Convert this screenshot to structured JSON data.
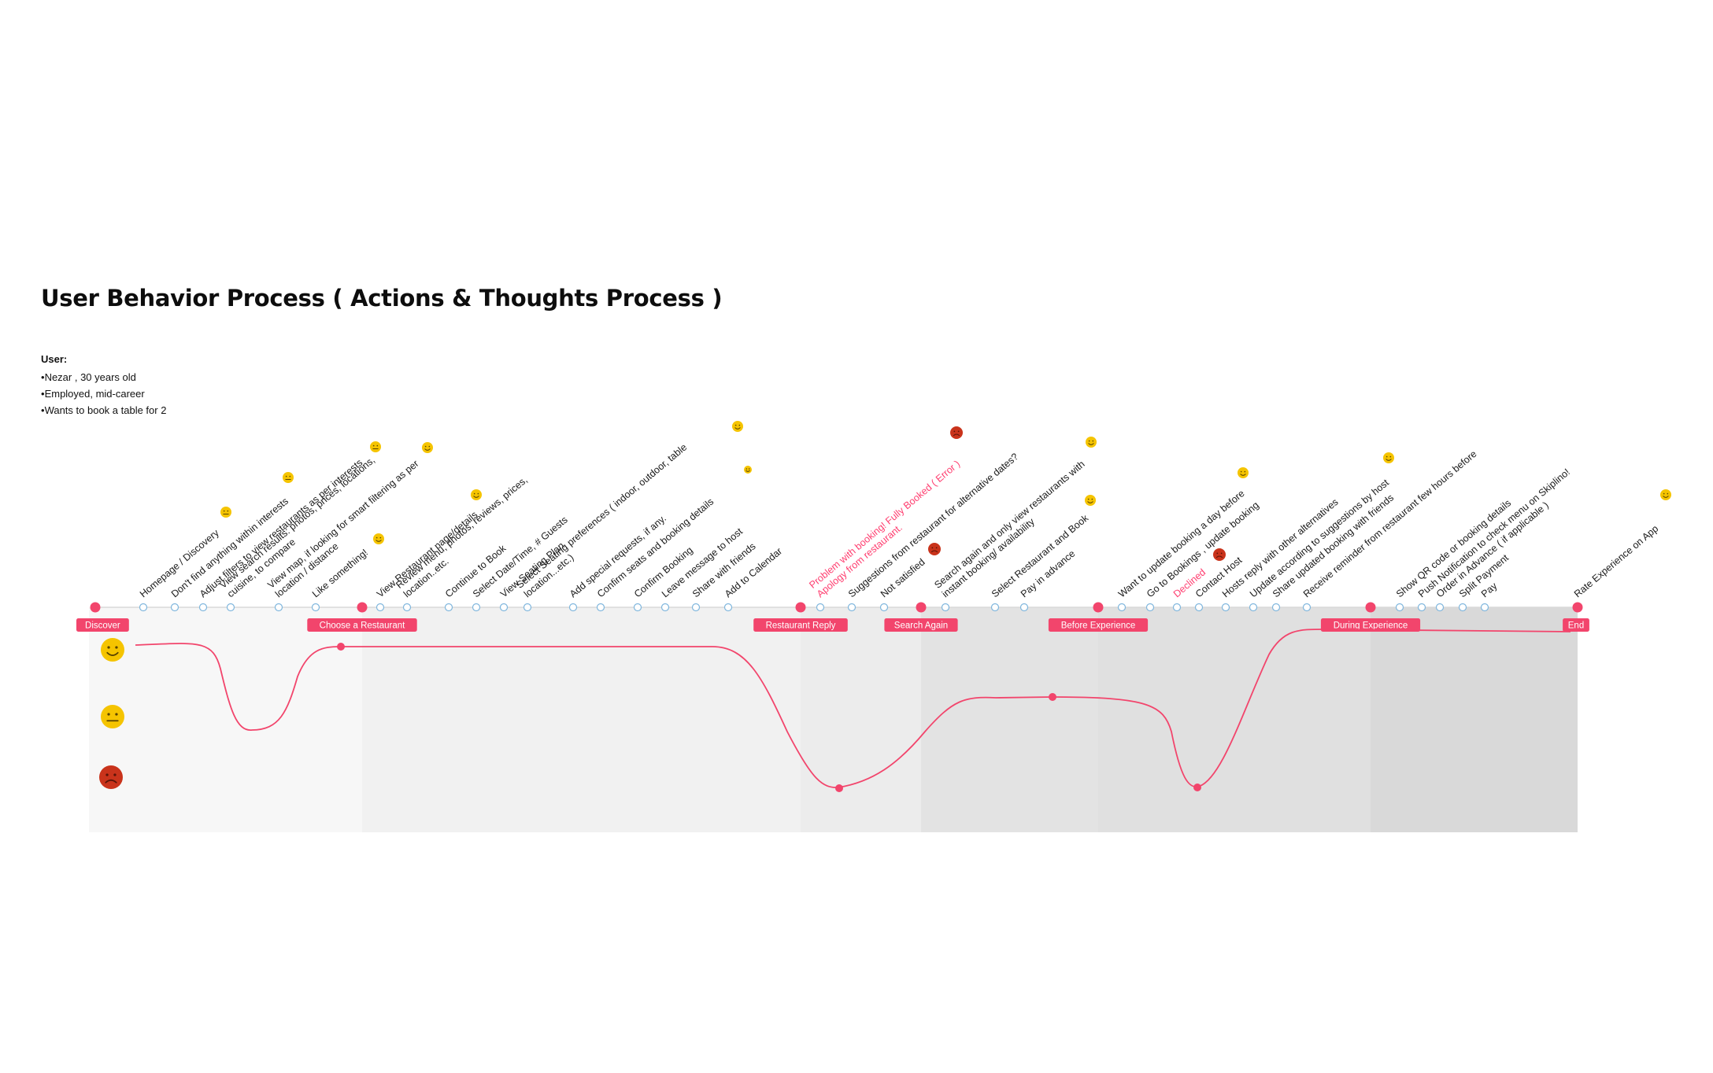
{
  "title": "User Behavior Process ( Actions & Thoughts Process )",
  "user": {
    "heading": "User:",
    "traits": [
      "Nezar , 30 years old",
      "Employed, mid-career",
      "Wants to book a table for 2"
    ]
  },
  "colors": {
    "accent": "#f2456c",
    "line": "#d9d9d9",
    "step_dot_stroke": "#7fb6dd",
    "happy": "#f5c400",
    "neutral": "#f5c400",
    "angry": "#c9331b",
    "warning_text": "#ff3d6f"
  },
  "phases": [
    {
      "label": "Discover",
      "shade": "#f7f7f7"
    },
    {
      "label": "Choose a Restaurant",
      "shade": "#f1f1f1"
    },
    {
      "label": "Restaurant Reply",
      "shade": "#ececec"
    },
    {
      "label": "Search Again",
      "shade": "#e3e3e3"
    },
    {
      "label": "Before Experience",
      "shade": "#e0e0e0"
    },
    {
      "label": "During Experience",
      "shade": "#d9d9d9"
    },
    {
      "label": "End",
      "shade": null
    }
  ],
  "steps": [
    {
      "lines": [
        "Homepage / Discovery"
      ],
      "mood": "neutral"
    },
    {
      "lines": [
        "Don't find anything within interests"
      ],
      "mood": "neutral"
    },
    {
      "lines": [
        "Adjust filters to view restaurants as per interests"
      ],
      "mood": null
    },
    {
      "lines": [
        "View search results: photos, prices, locations,",
        "cuisine, to compare"
      ],
      "mood": "neutral"
    },
    {
      "lines": [
        "View map, if looking for smart filtering as per",
        "location / distance"
      ],
      "mood": "happy"
    },
    {
      "lines": [
        "Like something!"
      ],
      "mood": "happy"
    },
    {
      "lines": [
        "View Restaurant page/details"
      ],
      "mood": null
    },
    {
      "lines": [
        "Review menu, photos, reviews, prices,",
        "location..etc."
      ],
      "mood": "happy"
    },
    {
      "lines": [
        "Continue to Book"
      ],
      "mood": null
    },
    {
      "lines": [
        "Select Date/Time, # Guests"
      ],
      "mood": null
    },
    {
      "lines": [
        "View Seating Plan"
      ],
      "mood": null
    },
    {
      "lines": [
        "Select Seating preferences ( indoor, outdoor, table",
        "location...etc.)"
      ],
      "mood": null
    },
    {
      "lines": [
        "Add special requests, if any."
      ],
      "mood": null
    },
    {
      "lines": [
        "Confirm seats and booking details"
      ],
      "mood": null
    },
    {
      "lines": [
        "Confirm Booking"
      ],
      "mood": null
    },
    {
      "lines": [
        "Leave message to host"
      ],
      "mood": "happy"
    },
    {
      "lines": [
        "Share with friends"
      ],
      "mood": "happy"
    },
    {
      "lines": [
        "Add to Calendar"
      ],
      "mood": null
    },
    {
      "lines": [
        "Problem with booking!  Fully Booked ( Error )",
        "Apology from restaurant."
      ],
      "mood": "angry",
      "warning": true
    },
    {
      "lines": [
        "Suggestions from restaurant for alternative dates?"
      ],
      "mood": null
    },
    {
      "lines": [
        "Not satisfied"
      ],
      "mood": "angry"
    },
    {
      "lines": [
        "Search again and only view restaurants with",
        "instant booking/ availability"
      ],
      "mood": "happy"
    },
    {
      "lines": [
        "Select Restaurant and Book"
      ],
      "mood": "happy"
    },
    {
      "lines": [
        "Pay in advance"
      ],
      "mood": null
    },
    {
      "lines": [
        "Want to update booking a day before"
      ],
      "mood": "happy"
    },
    {
      "lines": [
        "Go to Bookings , update booking"
      ],
      "mood": null
    },
    {
      "lines": [
        "Declined"
      ],
      "mood": "angry",
      "warning": true
    },
    {
      "lines": [
        "Contact Host"
      ],
      "mood": null
    },
    {
      "lines": [
        "Hosts reply with other alternatives"
      ],
      "mood": null
    },
    {
      "lines": [
        "Update according to suggestions by host"
      ],
      "mood": "happy"
    },
    {
      "lines": [
        "Share updated booking with friends"
      ],
      "mood": null
    },
    {
      "lines": [
        "Receive reminder from restaurant few hours before"
      ],
      "mood": null
    },
    {
      "lines": [
        "Show QR code or booking details"
      ],
      "mood": null
    },
    {
      "lines": [
        "Push Notification to check menu on Skiplino!"
      ],
      "mood": null
    },
    {
      "lines": [
        "Order in Advance ( if applicable )"
      ],
      "mood": null
    },
    {
      "lines": [
        "Split Payment"
      ],
      "mood": null
    },
    {
      "lines": [
        "Pay"
      ],
      "mood": null
    },
    {
      "lines": [
        "Rate Experience on App"
      ],
      "mood": "happy"
    }
  ],
  "emotion_scale": [
    "happy-face-icon",
    "neutral-face-icon",
    "angry-face-icon"
  ],
  "emotion_curve": [
    {
      "phase": "Discover",
      "level": "happy"
    },
    {
      "phase": "Discover",
      "level": "neutral"
    },
    {
      "phase": "Choose a Restaurant",
      "level": "happy"
    },
    {
      "phase": "Restaurant Reply",
      "level": "angry"
    },
    {
      "phase": "Before Experience",
      "level": "partly happy"
    },
    {
      "phase": "Before Experience",
      "level": "angry"
    },
    {
      "phase": "During Experience",
      "level": "happy"
    },
    {
      "phase": "End",
      "level": "happy"
    }
  ]
}
